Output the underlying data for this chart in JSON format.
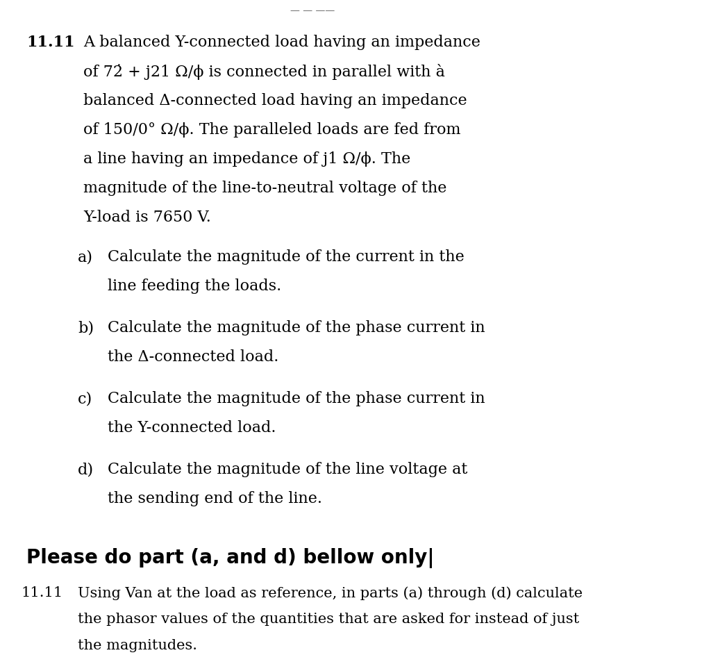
{
  "background_color": "#ffffff",
  "figsize": [
    10.24,
    9.66
  ],
  "dpi": 100,
  "problem_number": "11.11",
  "main_text_lines": [
    "A balanced Y-connected load having an impedance",
    "of 72̇ + j21 Ω/ϕ is connected in parallel with à",
    "balanced Δ-connected load having an impedance",
    "of 150/0° Ω/ϕ. The paralleled loads are fed from",
    "a line having an impedance of j1 Ω/ϕ. The",
    "magnitude of the line-to-neutral voltage of the",
    "Y-load is 7650 V."
  ],
  "sub_items": [
    {
      "label": "a)",
      "lines": [
        "Calculate the magnitude of the current in the",
        "line feeding the loads."
      ]
    },
    {
      "label": "b)",
      "lines": [
        "Calculate the magnitude of the phase current in",
        "the Δ-connected load."
      ]
    },
    {
      "label": "c)",
      "lines": [
        "Calculate the magnitude of the phase current in",
        "the Y-connected load."
      ]
    },
    {
      "label": "d)",
      "lines": [
        "Calculate the magnitude of the line voltage at",
        "the sending end of the line."
      ]
    }
  ],
  "bold_line": "Please do part (a, and d) bellow only|",
  "footer_number": "11.11",
  "footer_lines": [
    "Using Van at the load as reference, in parts (a) through (d) calculate",
    "the phasor values of the quantities that are asked for instead of just",
    "the magnitudes."
  ]
}
